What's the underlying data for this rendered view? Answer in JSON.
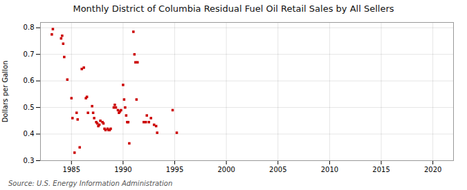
{
  "chart_data": {
    "type": "scatter",
    "title": "Monthly District of Columbia Residual Fuel Oil Retail Sales by All Sellers",
    "ylabel": "Dollars per Gallon",
    "source": "Source: U.S. Energy Information Administration",
    "color": "#cc0000",
    "marker": "square",
    "grid": true,
    "xlim": [
      1982,
      2022
    ],
    "ylim": [
      0.3,
      0.82
    ],
    "xticks": [
      1985,
      1990,
      1995,
      2000,
      2005,
      2010,
      2015,
      2020
    ],
    "yticks": [
      0.3,
      0.4,
      0.5,
      0.6,
      0.7,
      0.8
    ],
    "x": [
      1983.1,
      1983.2,
      1984.0,
      1984.1,
      1984.2,
      1984.3,
      1984.6,
      1985.0,
      1985.1,
      1985.3,
      1985.5,
      1985.6,
      1985.8,
      1986.0,
      1986.2,
      1986.4,
      1986.5,
      1986.6,
      1987.0,
      1987.1,
      1987.2,
      1987.4,
      1987.5,
      1987.6,
      1987.7,
      1987.8,
      1988.0,
      1988.1,
      1988.2,
      1988.3,
      1988.5,
      1988.6,
      1988.7,
      1988.8,
      1989.1,
      1989.2,
      1989.3,
      1989.5,
      1989.6,
      1989.7,
      1989.8,
      1990.0,
      1990.1,
      1990.2,
      1990.3,
      1990.4,
      1990.5,
      1990.6,
      1991.0,
      1991.1,
      1991.2,
      1991.3,
      1991.4,
      1992.0,
      1992.2,
      1992.3,
      1992.5,
      1992.7,
      1993.0,
      1993.2,
      1993.3,
      1994.8,
      1995.2
    ],
    "values": [
      0.775,
      0.795,
      0.76,
      0.77,
      0.74,
      0.69,
      0.605,
      0.535,
      0.46,
      0.33,
      0.48,
      0.455,
      0.35,
      0.645,
      0.65,
      0.535,
      0.54,
      0.48,
      0.505,
      0.48,
      0.46,
      0.445,
      0.44,
      0.43,
      0.435,
      0.45,
      0.445,
      0.44,
      0.42,
      0.415,
      0.42,
      0.415,
      0.415,
      0.42,
      0.5,
      0.51,
      0.5,
      0.49,
      0.48,
      0.485,
      0.49,
      0.585,
      0.53,
      0.5,
      0.47,
      0.445,
      0.445,
      0.365,
      0.785,
      0.7,
      0.67,
      0.53,
      0.67,
      0.445,
      0.445,
      0.47,
      0.445,
      0.46,
      0.435,
      0.43,
      0.405,
      0.49,
      0.405
    ]
  }
}
